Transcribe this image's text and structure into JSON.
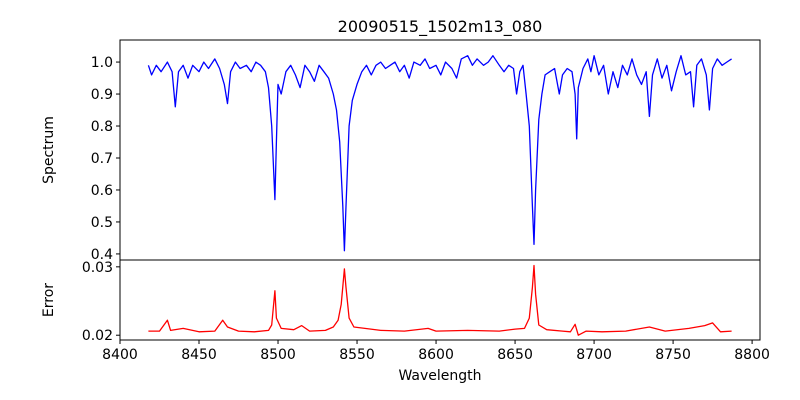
{
  "chart_data": [
    {
      "type": "line",
      "title": "20090515_1502m13_080",
      "xlabel": "",
      "ylabel": "Spectrum",
      "xlim": [
        8400,
        8805
      ],
      "ylim": [
        0.381,
        1.069
      ],
      "xticks": [],
      "yticks": [
        0.4,
        0.5,
        0.6,
        0.7,
        0.8,
        0.9,
        1.0
      ],
      "ytick_labels": [
        "0.4",
        "0.5",
        "0.6",
        "0.7",
        "0.8",
        "0.9",
        "1.0"
      ],
      "color": "#0000ff",
      "grid": false,
      "series": [
        {
          "name": "Spectrum",
          "x": [
            8418,
            8420,
            8423,
            8426,
            8430,
            8433,
            8435,
            8437,
            8440,
            8443,
            8446,
            8450,
            8453,
            8456,
            8460,
            8463,
            8466,
            8468,
            8470,
            8473,
            8476,
            8480,
            8483,
            8486,
            8489,
            8492,
            8494,
            8496,
            8498,
            8499,
            8500,
            8502,
            8505,
            8508,
            8511,
            8514,
            8517,
            8520,
            8523,
            8526,
            8529,
            8532,
            8535,
            8537,
            8539,
            8541,
            8542,
            8543,
            8545,
            8547,
            8550,
            8553,
            8556,
            8559,
            8562,
            8565,
            8568,
            8571,
            8574,
            8577,
            8580,
            8583,
            8586,
            8590,
            8593,
            8596,
            8600,
            8603,
            8606,
            8610,
            8613,
            8616,
            8620,
            8623,
            8626,
            8630,
            8633,
            8636,
            8640,
            8643,
            8646,
            8649,
            8651,
            8653,
            8655,
            8657,
            8659,
            8661,
            8662,
            8663,
            8665,
            8667,
            8669,
            8672,
            8675,
            8678,
            8680,
            8683,
            8686,
            8688,
            8689,
            8690,
            8693,
            8696,
            8698,
            8700,
            8703,
            8706,
            8709,
            8712,
            8715,
            8718,
            8721,
            8724,
            8727,
            8730,
            8733,
            8735,
            8737,
            8740,
            8743,
            8746,
            8749,
            8752,
            8755,
            8758,
            8761,
            8763,
            8765,
            8768,
            8771,
            8773,
            8775,
            8778,
            8781,
            8784,
            8787
          ],
          "y": [
            0.99,
            0.96,
            0.99,
            0.97,
            1.0,
            0.97,
            0.86,
            0.97,
            0.99,
            0.95,
            0.99,
            0.97,
            1.0,
            0.98,
            1.01,
            0.98,
            0.93,
            0.87,
            0.97,
            1.0,
            0.98,
            0.99,
            0.97,
            1.0,
            0.99,
            0.97,
            0.92,
            0.8,
            0.57,
            0.75,
            0.93,
            0.9,
            0.97,
            0.99,
            0.96,
            0.92,
            0.99,
            0.97,
            0.94,
            0.99,
            0.97,
            0.95,
            0.9,
            0.85,
            0.75,
            0.55,
            0.41,
            0.55,
            0.8,
            0.88,
            0.93,
            0.97,
            0.99,
            0.96,
            0.99,
            1.0,
            0.98,
            0.99,
            1.0,
            0.97,
            0.99,
            0.95,
            1.0,
            0.99,
            1.01,
            0.98,
            0.99,
            0.96,
            1.0,
            0.98,
            0.95,
            1.01,
            1.02,
            0.99,
            1.01,
            0.99,
            1.0,
            1.02,
            0.99,
            0.97,
            0.99,
            0.98,
            0.9,
            0.97,
            0.99,
            0.9,
            0.8,
            0.55,
            0.43,
            0.6,
            0.82,
            0.9,
            0.96,
            0.97,
            0.98,
            0.9,
            0.96,
            0.98,
            0.97,
            0.9,
            0.76,
            0.92,
            0.98,
            1.01,
            0.97,
            1.02,
            0.96,
            0.99,
            0.9,
            0.97,
            0.92,
            0.99,
            0.96,
            1.01,
            0.96,
            0.93,
            0.97,
            0.83,
            0.96,
            1.01,
            0.95,
            0.99,
            0.91,
            0.97,
            1.02,
            0.96,
            0.97,
            0.86,
            0.99,
            1.01,
            0.96,
            0.85,
            0.98,
            1.01,
            0.99,
            1.0,
            1.01
          ]
        }
      ]
    },
    {
      "type": "line",
      "title": "",
      "xlabel": "Wavelength",
      "ylabel": "Error",
      "xlim": [
        8400,
        8805
      ],
      "ylim": [
        0.0193,
        0.031
      ],
      "xticks": [
        8400,
        8450,
        8500,
        8550,
        8600,
        8650,
        8700,
        8750,
        8800
      ],
      "xtick_labels": [
        "8400",
        "8450",
        "8500",
        "8550",
        "8600",
        "8650",
        "8700",
        "8750",
        "8800"
      ],
      "yticks": [
        0.02,
        0.03
      ],
      "ytick_labels": [
        "0.02",
        "0.03"
      ],
      "color": "#ff0000",
      "grid": false,
      "series": [
        {
          "name": "Error",
          "x": [
            8418,
            8425,
            8430,
            8432,
            8440,
            8450,
            8460,
            8465,
            8468,
            8475,
            8485,
            8494,
            8496,
            8498,
            8499,
            8502,
            8510,
            8515,
            8520,
            8530,
            8535,
            8538,
            8540,
            8542,
            8543,
            8545,
            8548,
            8555,
            8565,
            8580,
            8595,
            8600,
            8620,
            8640,
            8650,
            8656,
            8659,
            8661,
            8662,
            8663,
            8665,
            8670,
            8680,
            8685,
            8688,
            8690,
            8695,
            8705,
            8720,
            8735,
            8745,
            8760,
            8770,
            8775,
            8780,
            8787
          ],
          "y": [
            0.0206,
            0.0206,
            0.0222,
            0.0207,
            0.021,
            0.0205,
            0.0206,
            0.0222,
            0.0212,
            0.0206,
            0.0205,
            0.0207,
            0.0215,
            0.0265,
            0.0225,
            0.021,
            0.0208,
            0.0214,
            0.0206,
            0.0207,
            0.0212,
            0.0222,
            0.0245,
            0.0297,
            0.027,
            0.0225,
            0.0212,
            0.021,
            0.0207,
            0.0206,
            0.021,
            0.0206,
            0.0207,
            0.0206,
            0.0209,
            0.021,
            0.0225,
            0.027,
            0.0302,
            0.026,
            0.0215,
            0.0208,
            0.0206,
            0.0205,
            0.0216,
            0.02,
            0.0206,
            0.0205,
            0.0206,
            0.0212,
            0.0206,
            0.021,
            0.0214,
            0.0218,
            0.0205,
            0.0206
          ]
        }
      ]
    }
  ]
}
